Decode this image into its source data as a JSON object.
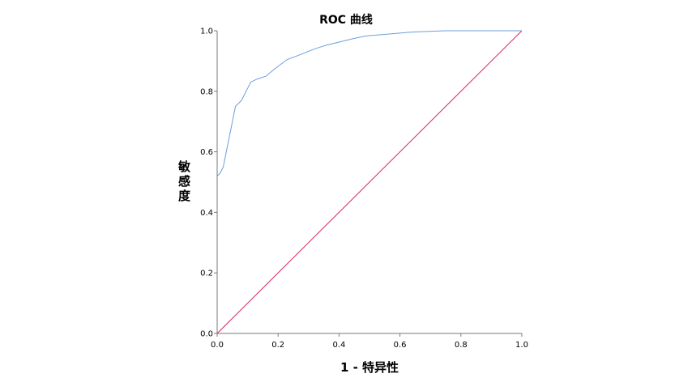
{
  "chart_data": {
    "type": "line",
    "title": "ROC 曲线",
    "xlabel": "1 - 特异性",
    "ylabel": "敏感度",
    "xlim": [
      0,
      1
    ],
    "ylim": [
      0,
      1
    ],
    "xticks": [
      "0.0",
      "0.2",
      "0.4",
      "0.6",
      "0.8",
      "1.0"
    ],
    "yticks": [
      "0.0",
      "0.2",
      "0.4",
      "0.6",
      "0.8",
      "1.0"
    ],
    "grid": false,
    "legend": "none",
    "series": [
      {
        "color": "#6a9fdc",
        "x": [
          0.0,
          0.0,
          0.0,
          0.01,
          0.02,
          0.04,
          0.06,
          0.08,
          0.09,
          0.11,
          0.13,
          0.16,
          0.19,
          0.23,
          0.27,
          0.32,
          0.36,
          0.41,
          0.45,
          0.49,
          0.55,
          0.63,
          0.67,
          0.75,
          1.0
        ],
        "y": [
          0.0,
          0.4,
          0.52,
          0.53,
          0.55,
          0.65,
          0.75,
          0.77,
          0.79,
          0.83,
          0.84,
          0.85,
          0.875,
          0.905,
          0.92,
          0.94,
          0.953,
          0.965,
          0.975,
          0.983,
          0.988,
          0.995,
          0.997,
          1.0,
          1.0
        ]
      },
      {
        "color": "#d6245a",
        "x": [
          0.0,
          1.0
        ],
        "y": [
          0.0,
          1.0
        ]
      }
    ]
  }
}
